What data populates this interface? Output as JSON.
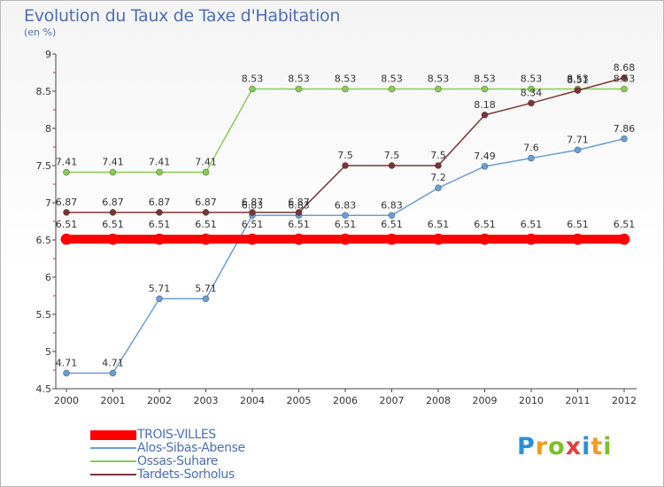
{
  "title": "Evolution du Taux de Taxe d'Habitation",
  "subtitle": "(en %)",
  "logo": {
    "letters": [
      "P",
      "r",
      "o",
      "x",
      "i",
      "t",
      "i"
    ],
    "colors": [
      "#2d8fd6",
      "#f29b1f",
      "#7bbf2a",
      "#e23e3e",
      "#2d8fd6",
      "#f29b1f",
      "#7bbf2a"
    ]
  },
  "chart_data": {
    "type": "line",
    "title": "Evolution du Taux de Taxe d'Habitation",
    "ylabel": "(en %)",
    "xlabel": "",
    "x": [
      "2000",
      "2001",
      "2002",
      "2003",
      "2004",
      "2005",
      "2006",
      "2007",
      "2008",
      "2009",
      "2010",
      "2011",
      "2012"
    ],
    "ylim": [
      4.5,
      9
    ],
    "yticks": [
      "4.5",
      "5",
      "5.5",
      "6",
      "6.5",
      "7",
      "7.5",
      "8",
      "8.5",
      "9"
    ],
    "grid": false,
    "legend_position": "bottom-left",
    "series": [
      {
        "name": "TROIS-VILLES",
        "color": "#ff0000",
        "values": [
          6.51,
          6.51,
          6.51,
          6.51,
          6.51,
          6.51,
          6.51,
          6.51,
          6.51,
          6.51,
          6.51,
          6.51,
          6.51
        ],
        "labels": [
          "6.51",
          "6.51",
          "6.51",
          "6.51",
          "6.51",
          "6.51",
          "6.51",
          "6.51",
          "6.51",
          "6.51",
          "6.51",
          "6.51",
          "6.51"
        ]
      },
      {
        "name": "Alos-Sibas-Abense",
        "color": "#6a9fd4",
        "values": [
          4.71,
          4.71,
          5.71,
          5.71,
          6.83,
          6.83,
          6.83,
          6.83,
          7.2,
          7.49,
          7.6,
          7.71,
          7.86
        ],
        "labels": [
          "4.71",
          "4.71",
          "5.71",
          "5.71",
          "6.83",
          "6.83",
          "6.83",
          "6.83",
          "7.2",
          "7.49",
          "7.6",
          "7.71",
          "7.86"
        ]
      },
      {
        "name": "Ossas-Suhare",
        "color": "#88cc55",
        "values": [
          7.41,
          7.41,
          7.41,
          7.41,
          8.53,
          8.53,
          8.53,
          8.53,
          8.53,
          8.53,
          8.53,
          8.53,
          8.53
        ],
        "labels": [
          "7.41",
          "7.41",
          "7.41",
          "7.41",
          "8.53",
          "8.53",
          "8.53",
          "8.53",
          "8.53",
          "8.53",
          "8.53",
          "8.53",
          "8.53"
        ]
      },
      {
        "name": "Tardets-Sorholus",
        "color": "#7b3535",
        "values": [
          6.87,
          6.87,
          6.87,
          6.87,
          6.87,
          6.87,
          7.5,
          7.5,
          7.5,
          8.18,
          8.34,
          8.51,
          8.68
        ],
        "labels": [
          "6.87",
          "6.87",
          "6.87",
          "6.87",
          "6.87",
          "6.87",
          "7.5",
          "7.5",
          "7.5",
          "8.18",
          "8.34",
          "8.51",
          "8.68"
        ]
      }
    ]
  }
}
